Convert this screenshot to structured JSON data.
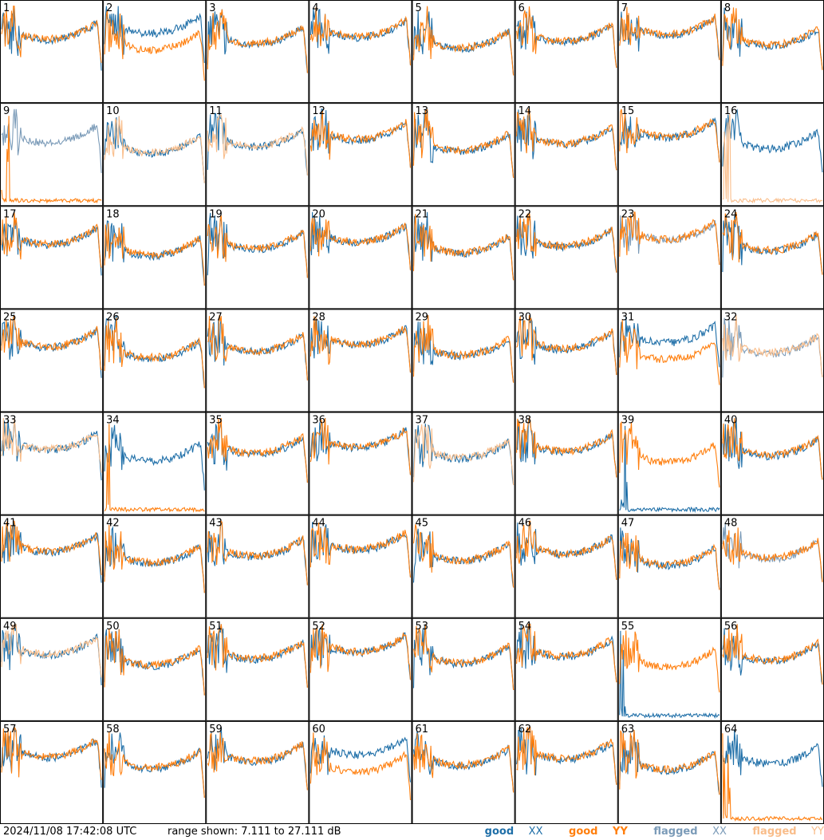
{
  "chart_data": {
    "type": "line",
    "grid": {
      "rows": 8,
      "cols": 8
    },
    "panels": [
      "1",
      "2",
      "3",
      "4",
      "5",
      "6",
      "7",
      "8",
      "9",
      "10",
      "11",
      "12",
      "13",
      "14",
      "15",
      "16",
      "17",
      "18",
      "19",
      "20",
      "21",
      "22",
      "23",
      "24",
      "25",
      "26",
      "27",
      "28",
      "29",
      "30",
      "31",
      "32",
      "33",
      "34",
      "35",
      "36",
      "37",
      "38",
      "39",
      "40",
      "41",
      "42",
      "43",
      "44",
      "45",
      "46",
      "47",
      "48",
      "49",
      "50",
      "51",
      "52",
      "53",
      "54",
      "55",
      "56",
      "57",
      "58",
      "59",
      "60",
      "61",
      "62",
      "63",
      "64"
    ],
    "flagged_xx": [
      "9",
      "23",
      "32",
      "48"
    ],
    "flagged_yy": [
      "10",
      "11",
      "16",
      "32",
      "33",
      "37",
      "49"
    ],
    "dead_xx": [
      "39",
      "55"
    ],
    "dead_yy": [
      "9",
      "16",
      "34",
      "64"
    ],
    "yrange_db": [
      7.111,
      27.111
    ],
    "series": [
      {
        "name": "good XX",
        "color": "#1f6fa8"
      },
      {
        "name": "good YY",
        "color": "#ff7f0e"
      },
      {
        "name": "flagged XX",
        "color": "#7b9bb8"
      },
      {
        "name": "flagged YY",
        "color": "#f9bd8a"
      }
    ]
  },
  "footer": {
    "timestamp": "2024/11/08 17:42:08 UTC",
    "range_text": "range shown: 7.111 to 27.111 dB"
  },
  "legend": {
    "good": "good",
    "flagged": "flagged",
    "xx": "XX",
    "yy": "YY"
  },
  "colors": {
    "good_xx": "#1f6fa8",
    "good_yy": "#ff7f0e",
    "flagged_xx": "#7b9bb8",
    "flagged_yy": "#f9bd8a"
  }
}
